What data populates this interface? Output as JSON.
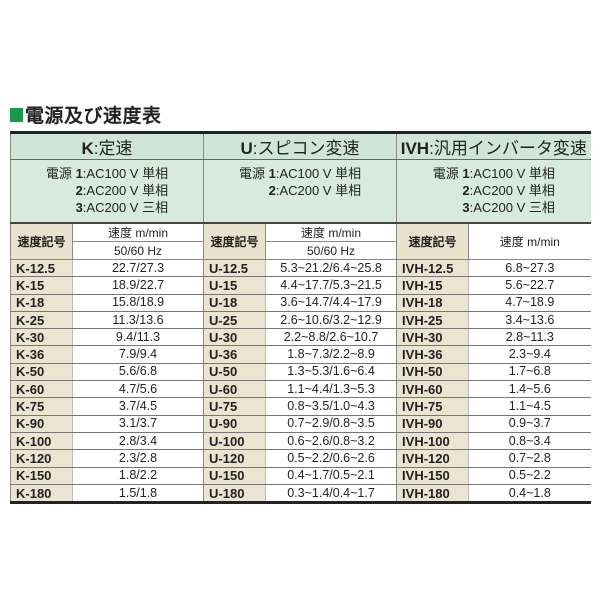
{
  "title": "電源及び速度表",
  "colors": {
    "accent_square": "#1a9a4a",
    "header_bg": "#cfe6d6",
    "code_bg": "#ebe4d1"
  },
  "groups": [
    {
      "code": "K",
      "name": "定速",
      "power": [
        [
          "電源 ",
          "1",
          "AC100 V 単相"
        ],
        [
          "",
          "2",
          "AC200 V 単相"
        ],
        [
          "",
          "3",
          "AC200 V 三相"
        ]
      ],
      "code_header": "速度記号",
      "speed_header": "速度 m/min",
      "freq_header": "50/60 Hz",
      "rows": [
        [
          "K-12.5",
          "22.7/27.3"
        ],
        [
          "K-15",
          "18.9/22.7"
        ],
        [
          "K-18",
          "15.8/18.9"
        ],
        [
          "K-25",
          "11.3/13.6"
        ],
        [
          "K-30",
          "9.4/11.3"
        ],
        [
          "K-36",
          "7.9/9.4"
        ],
        [
          "K-50",
          "5.6/6.8"
        ],
        [
          "K-60",
          "4.7/5.6"
        ],
        [
          "K-75",
          "3.7/4.5"
        ],
        [
          "K-90",
          "3.1/3.7"
        ],
        [
          "K-100",
          "2.8/3.4"
        ],
        [
          "K-120",
          "2.3/2.8"
        ],
        [
          "K-150",
          "1.8/2.2"
        ],
        [
          "K-180",
          "1.5/1.8"
        ]
      ]
    },
    {
      "code": "U",
      "name": "スピコン変速",
      "power": [
        [
          "電源 ",
          "1",
          "AC100 V 単相"
        ],
        [
          "",
          "2",
          "AC200 V 単相"
        ]
      ],
      "code_header": "速度記号",
      "speed_header": "速度 m/min",
      "freq_header": "50/60 Hz",
      "rows": [
        [
          "U-12.5",
          "5.3~21.2/6.4~25.8"
        ],
        [
          "U-15",
          "4.4~17.7/5.3~21.5"
        ],
        [
          "U-18",
          "3.6~14.7/4.4~17.9"
        ],
        [
          "U-25",
          "2.6~10.6/3.2~12.9"
        ],
        [
          "U-30",
          "2.2~8.8/2.6~10.7"
        ],
        [
          "U-36",
          "1.8~7.3/2.2~8.9"
        ],
        [
          "U-50",
          "1.3~5.3/1.6~6.4"
        ],
        [
          "U-60",
          "1.1~4.4/1.3~5.3"
        ],
        [
          "U-75",
          "0.8~3.5/1.0~4.3"
        ],
        [
          "U-90",
          "0.7~2.9/0.8~3.5"
        ],
        [
          "U-100",
          "0.6~2.6/0.8~3.2"
        ],
        [
          "U-120",
          "0.5~2.2/0.6~2.6"
        ],
        [
          "U-150",
          "0.4~1.7/0.5~2.1"
        ],
        [
          "U-180",
          "0.3~1.4/0.4~1.7"
        ]
      ]
    },
    {
      "code": "IVH",
      "name": "汎用インバータ変速",
      "power": [
        [
          "電源 ",
          "1",
          "AC100 V 単相"
        ],
        [
          "",
          "2",
          "AC200 V 単相"
        ],
        [
          "",
          "3",
          "AC200 V 三相"
        ]
      ],
      "code_header": "速度記号",
      "speed_header": "速度 m/min",
      "rows": [
        [
          "IVH-12.5",
          "6.8~27.3"
        ],
        [
          "IVH-15",
          "5.6~22.7"
        ],
        [
          "IVH-18",
          "4.7~18.9"
        ],
        [
          "IVH-25",
          "3.4~13.6"
        ],
        [
          "IVH-30",
          "2.8~11.3"
        ],
        [
          "IVH-36",
          "2.3~9.4"
        ],
        [
          "IVH-50",
          "1.7~6.8"
        ],
        [
          "IVH-60",
          "1.4~5.6"
        ],
        [
          "IVH-75",
          "1.1~4.5"
        ],
        [
          "IVH-90",
          "0.9~3.7"
        ],
        [
          "IVH-100",
          "0.8~3.4"
        ],
        [
          "IVH-120",
          "0.7~2.8"
        ],
        [
          "IVH-150",
          "0.5~2.2"
        ],
        [
          "IVH-180",
          "0.4~1.8"
        ]
      ]
    }
  ]
}
